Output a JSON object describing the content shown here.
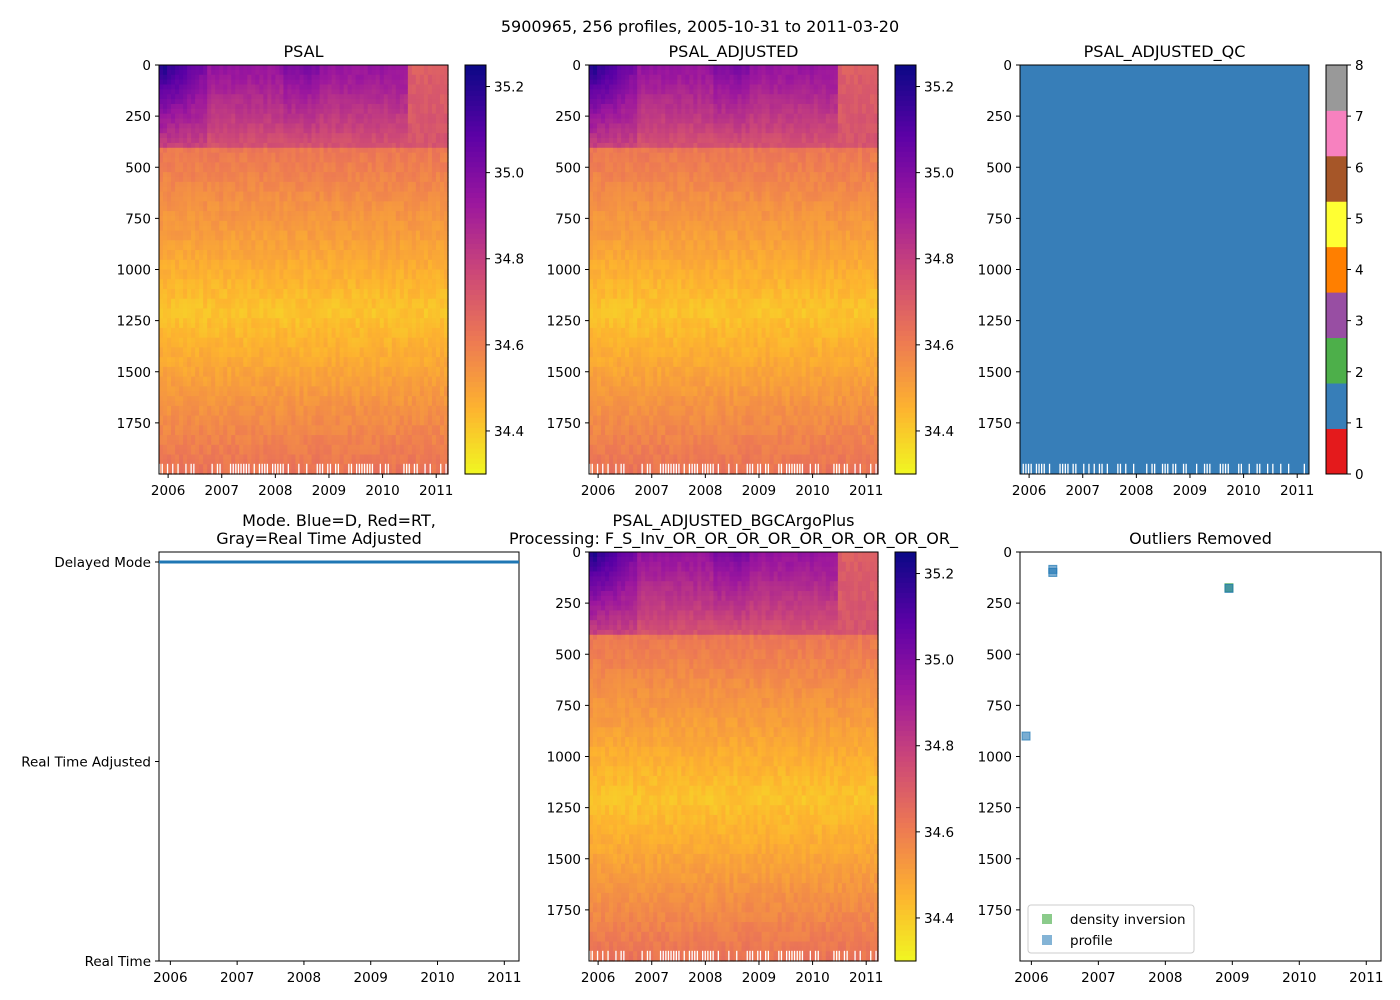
{
  "figure": {
    "suptitle": "5900965, 256 profiles, 2005-10-31 to 2011-03-20"
  },
  "colors": {
    "plasma": [
      "#f0f921",
      "#fdb32f",
      "#ed7953",
      "#cc4778",
      "#9c179e",
      "#5c01a6",
      "#0d0887"
    ],
    "mode_line": "#1f77b4",
    "density_inversion": "#2ca02c",
    "profile": "#1f77b4",
    "qc_fill": "#377eb8"
  },
  "chart_data": [
    {
      "id": "psal",
      "type": "heatmap",
      "title": "PSAL",
      "x_ticks": [
        "2006",
        "2007",
        "2008",
        "2009",
        "2010",
        "2011"
      ],
      "x_tick_values": [
        2006,
        2007,
        2008,
        2009,
        2010,
        2011
      ],
      "xlim": [
        2005.83,
        2011.22
      ],
      "y_ticks": [
        "0",
        "250",
        "500",
        "750",
        "1000",
        "1250",
        "1500",
        "1750"
      ],
      "y_tick_values": [
        0,
        250,
        500,
        750,
        1000,
        1250,
        1500,
        1750
      ],
      "ylim": [
        2000,
        0
      ],
      "colorbar": {
        "ticks": [
          "34.4",
          "34.6",
          "34.8",
          "35.0",
          "35.2"
        ],
        "tick_values": [
          34.4,
          34.6,
          34.8,
          35.0,
          35.2
        ],
        "range": [
          34.3,
          35.25
        ],
        "cmap": "plasma_r"
      }
    },
    {
      "id": "psal_adjusted",
      "type": "heatmap",
      "title": "PSAL_ADJUSTED",
      "x_ticks": [
        "2006",
        "2007",
        "2008",
        "2009",
        "2010",
        "2011"
      ],
      "x_tick_values": [
        2006,
        2007,
        2008,
        2009,
        2010,
        2011
      ],
      "xlim": [
        2005.83,
        2011.22
      ],
      "y_ticks": [
        "0",
        "250",
        "500",
        "750",
        "1000",
        "1250",
        "1500",
        "1750"
      ],
      "y_tick_values": [
        0,
        250,
        500,
        750,
        1000,
        1250,
        1500,
        1750
      ],
      "ylim": [
        2000,
        0
      ],
      "colorbar": {
        "ticks": [
          "34.4",
          "34.6",
          "34.8",
          "35.0",
          "35.2"
        ],
        "tick_values": [
          34.4,
          34.6,
          34.8,
          35.0,
          35.2
        ],
        "range": [
          34.3,
          35.25
        ],
        "cmap": "plasma_r"
      }
    },
    {
      "id": "psal_adjusted_qc",
      "type": "heatmap",
      "title": "PSAL_ADJUSTED_QC",
      "x_ticks": [
        "2006",
        "2007",
        "2008",
        "2009",
        "2010",
        "2011"
      ],
      "x_tick_values": [
        2006,
        2007,
        2008,
        2009,
        2010,
        2011
      ],
      "xlim": [
        2005.83,
        2011.22
      ],
      "y_ticks": [
        "0",
        "250",
        "500",
        "750",
        "1000",
        "1250",
        "1500",
        "1750"
      ],
      "y_tick_values": [
        0,
        250,
        500,
        750,
        1000,
        1250,
        1500,
        1750
      ],
      "ylim": [
        2000,
        0
      ],
      "dominant_qc_value": 1,
      "colorbar": {
        "ticks": [
          "0",
          "1",
          "2",
          "3",
          "4",
          "5",
          "6",
          "7",
          "8"
        ],
        "tick_values": [
          0,
          1,
          2,
          3,
          4,
          5,
          6,
          7,
          8
        ],
        "range": [
          0,
          8
        ],
        "classes": [
          "#e41a1c",
          "#377eb8",
          "#4daf4a",
          "#984ea3",
          "#ff7f00",
          "#ffff33",
          "#a65628",
          "#f781bf",
          "#999999"
        ]
      }
    },
    {
      "id": "mode",
      "type": "line",
      "title_lines": [
        "Mode. Blue=D, Red=RT,",
        "Gray=Real Time Adjusted"
      ],
      "x_ticks": [
        "2006",
        "2007",
        "2008",
        "2009",
        "2010",
        "2011"
      ],
      "x_tick_values": [
        2006,
        2007,
        2008,
        2009,
        2010,
        2011
      ],
      "xlim": [
        2005.83,
        2011.22
      ],
      "y_ticks": [
        "Delayed Mode",
        "Real Time Adjusted",
        "Real Time"
      ],
      "y_tick_values": [
        2,
        1,
        0
      ],
      "ylim": [
        0,
        2.05
      ],
      "series": [
        {
          "name": "Delayed Mode",
          "x_start": 2005.83,
          "x_end": 2011.22,
          "y": 2
        }
      ]
    },
    {
      "id": "bgcargoplus",
      "type": "heatmap",
      "title_lines": [
        "PSAL_ADJUSTED_BGCArgoPlus",
        "Processing: F_S_Inv_OR_OR_OR_OR_OR_OR_OR_OR_OR_"
      ],
      "x_ticks": [
        "2006",
        "2007",
        "2008",
        "2009",
        "2010",
        "2011"
      ],
      "x_tick_values": [
        2006,
        2007,
        2008,
        2009,
        2010,
        2011
      ],
      "xlim": [
        2005.83,
        2011.22
      ],
      "y_ticks": [
        "0",
        "250",
        "500",
        "750",
        "1000",
        "1250",
        "1500",
        "1750"
      ],
      "y_tick_values": [
        0,
        250,
        500,
        750,
        1000,
        1250,
        1500,
        1750
      ],
      "ylim": [
        2000,
        0
      ],
      "colorbar": {
        "ticks": [
          "34.4",
          "34.6",
          "34.8",
          "35.0",
          "35.2"
        ],
        "tick_values": [
          34.4,
          34.6,
          34.8,
          35.0,
          35.2
        ],
        "range": [
          34.3,
          35.25
        ],
        "cmap": "plasma_r"
      }
    },
    {
      "id": "outliers",
      "type": "scatter",
      "title": "Outliers Removed",
      "x_ticks": [
        "2006",
        "2007",
        "2008",
        "2009",
        "2010",
        "2011"
      ],
      "x_tick_values": [
        2006,
        2007,
        2008,
        2009,
        2010,
        2011
      ],
      "xlim": [
        2005.83,
        2011.22
      ],
      "y_ticks": [
        "0",
        "250",
        "500",
        "750",
        "1000",
        "1250",
        "1500",
        "1750"
      ],
      "y_tick_values": [
        0,
        250,
        500,
        750,
        1000,
        1250,
        1500,
        1750
      ],
      "ylim": [
        2000,
        0
      ],
      "legend": [
        "density inversion",
        "profile"
      ],
      "legend_loc": "lower-left",
      "series": [
        {
          "name": "density inversion",
          "points": [
            [
              2008.95,
              175
            ]
          ]
        },
        {
          "name": "profile",
          "points": [
            [
              2006.32,
              85
            ],
            [
              2006.32,
              100
            ],
            [
              2005.92,
              900
            ],
            [
              2008.95,
              178
            ]
          ]
        }
      ]
    }
  ]
}
